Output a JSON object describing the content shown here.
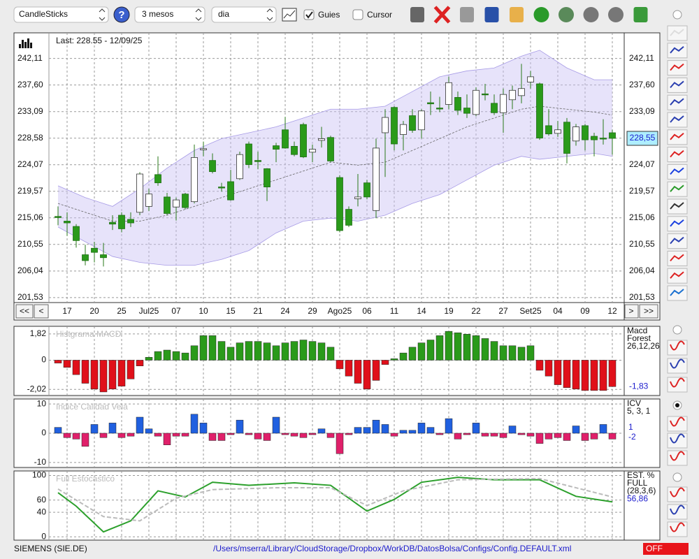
{
  "toolbar": {
    "chart_type": "CandleSticks",
    "period": "3 mesos",
    "interval": "dia",
    "guides_label": "Guies",
    "guides_checked": true,
    "cursor_label": "Cursor",
    "cursor_checked": false
  },
  "nav": {
    "first": "<<",
    "prev": "<",
    "next": ">",
    "last": ">>"
  },
  "chart_data": [
    {
      "type": "candlestick",
      "title": "Last: 228.55 - 12/09/25",
      "categories": [
        null,
        "17",
        null,
        null,
        "20",
        null,
        null,
        "25",
        null,
        null,
        "Jul25",
        null,
        null,
        "07",
        null,
        null,
        "10",
        null,
        null,
        "15",
        null,
        null,
        "21",
        null,
        null,
        "24",
        null,
        null,
        "29",
        null,
        null,
        "Ago25",
        null,
        null,
        "06",
        null,
        null,
        "11",
        null,
        null,
        "14",
        null,
        null,
        "19",
        null,
        null,
        "22",
        null,
        null,
        "27",
        null,
        null,
        "Set25",
        null,
        null,
        "04",
        null,
        null,
        "09",
        null,
        null,
        "12"
      ],
      "open": [
        215.3,
        214.5,
        213.6,
        208.8,
        209.9,
        208.8,
        214.3,
        215.5,
        214.8,
        216.0,
        217.0,
        222.4,
        218.6,
        216.9,
        219.1,
        217.8,
        226.6,
        224.8,
        220.3,
        221.2,
        221.7,
        227.6,
        224.8,
        223.4,
        227.3,
        230.0,
        227.2,
        230.9,
        226.2,
        228.2,
        228.7,
        221.9,
        216.5,
        218.3,
        221.0,
        216.3,
        229.5,
        233.8,
        229.2,
        232.4,
        230.0,
        234.6,
        233.7,
        234.3,
        235.5,
        233.7,
        232.6,
        236.1,
        234.5,
        232.9,
        235.1,
        235.8,
        238.1,
        237.8,
        230.7,
        229.4,
        231.3,
        228.1,
        230.7,
        228.9,
        228.6,
        229.5
      ],
      "high": [
        217.0,
        216.0,
        214.0,
        210.5,
        211.0,
        210.8,
        215.5,
        216.0,
        216.0,
        222.8,
        220.0,
        225.5,
        219.3,
        218.5,
        219.3,
        227.5,
        228.0,
        226.0,
        221.0,
        223.2,
        226.3,
        228.0,
        226.3,
        223.5,
        227.8,
        232.2,
        228.0,
        231.2,
        227.5,
        230.5,
        229.0,
        222.3,
        217.0,
        222.5,
        221.5,
        228.5,
        233.5,
        234.0,
        231.5,
        233.5,
        233.5,
        236.5,
        235.6,
        239.0,
        236.5,
        236.0,
        237.2,
        237.8,
        236.0,
        237.0,
        237.5,
        241.2,
        240.0,
        238.0,
        233.5,
        231.5,
        232.0,
        231.0,
        231.0,
        229.5,
        231.8,
        230.0
      ],
      "low": [
        213.8,
        212.0,
        210.0,
        207.0,
        207.5,
        206.8,
        213.0,
        212.6,
        213.5,
        215.5,
        216.2,
        220.5,
        215.5,
        214.6,
        216.5,
        217.5,
        225.5,
        222.6,
        219.5,
        218.0,
        221.5,
        223.5,
        223.3,
        217.9,
        224.5,
        226.8,
        225.5,
        225.2,
        224.5,
        227.0,
        224.5,
        212.6,
        213.5,
        217.0,
        218.2,
        215.0,
        222.0,
        226.5,
        226.5,
        229.5,
        228.5,
        232.5,
        233.0,
        233.5,
        232.5,
        232.0,
        232.3,
        235.0,
        232.5,
        229.5,
        233.5,
        234.5,
        237.0,
        228.3,
        229.0,
        228.8,
        224.3,
        227.3,
        226.5,
        225.5,
        227.5,
        225.8
      ],
      "close": [
        215.1,
        214.2,
        211.2,
        207.8,
        209.2,
        208.3,
        214.0,
        213.2,
        214.2,
        222.5,
        219.1,
        221.0,
        215.8,
        218.1,
        216.8,
        225.3,
        226.8,
        222.9,
        220.2,
        218.1,
        225.8,
        224.1,
        224.6,
        220.3,
        226.7,
        226.9,
        225.8,
        225.4,
        226.7,
        228.5,
        224.7,
        212.9,
        213.8,
        218.6,
        218.6,
        226.9,
        232.1,
        227.6,
        230.9,
        229.9,
        233.2,
        234.4,
        233.6,
        238.0,
        233.3,
        232.8,
        236.7,
        236.0,
        232.9,
        236.0,
        236.7,
        237.0,
        239.0,
        228.6,
        229.3,
        230.0,
        226.0,
        230.5,
        228.3,
        228.3,
        228.5,
        228.55
      ],
      "last_label": "228,55",
      "up_color": "#ffffff",
      "down_color": "#2a9a1a",
      "bands": {
        "index": [
          0,
          3,
          6,
          9,
          12,
          15,
          18,
          21,
          24,
          27,
          30,
          33,
          36,
          39,
          42,
          45,
          48,
          51,
          53,
          56,
          59,
          61
        ],
        "upper": [
          220.5,
          218.5,
          217.0,
          220.0,
          223.5,
          226.5,
          228.5,
          229.5,
          230.5,
          232.0,
          233.5,
          233.5,
          234.0,
          236.5,
          239.0,
          240.0,
          240.5,
          242.5,
          243.5,
          240.5,
          238.5,
          238.5
        ],
        "mid": [
          217.5,
          216.0,
          214.5,
          214.5,
          215.5,
          217.0,
          218.5,
          220.0,
          221.5,
          223.0,
          224.5,
          224.0,
          224.5,
          226.5,
          228.5,
          230.5,
          232.0,
          233.5,
          234.0,
          233.5,
          233.0,
          232.5
        ],
        "lower": [
          213.5,
          211.0,
          208.5,
          207.5,
          207.0,
          207.0,
          208.0,
          209.5,
          212.5,
          214.5,
          215.0,
          214.5,
          215.5,
          217.5,
          219.0,
          221.5,
          224.0,
          225.5,
          225.0,
          225.5,
          226.0,
          225.5
        ],
        "color": "#c9c2f4"
      },
      "ylim": [
        200.8,
        246.1
      ],
      "yticks": [
        {
          "value": 242.11,
          "label": "242,11"
        },
        {
          "value": 237.6,
          "label": "237,60"
        },
        {
          "value": 233.09,
          "label": "233,09"
        },
        {
          "value": 228.58,
          "label": "228,58"
        },
        {
          "value": 224.07,
          "label": "224,07"
        },
        {
          "value": 219.57,
          "label": "219,57"
        },
        {
          "value": 215.06,
          "label": "215,06"
        },
        {
          "value": 210.55,
          "label": "210,55"
        },
        {
          "value": 206.04,
          "label": "206,04"
        },
        {
          "value": 201.53,
          "label": "201,53"
        }
      ],
      "grid": true
    },
    {
      "type": "bar",
      "title": "Histgrama MACD",
      "legend": [
        "Macd",
        "Forest",
        "26,12,26"
      ],
      "last_label": "-1,83",
      "values": [
        -0.2,
        -0.5,
        -1.0,
        -1.6,
        -2.0,
        -2.2,
        -2.0,
        -1.8,
        -1.3,
        -0.4,
        0.2,
        0.6,
        0.7,
        0.6,
        0.5,
        1.0,
        1.7,
        1.7,
        1.3,
        0.9,
        1.2,
        1.3,
        1.3,
        1.2,
        1.0,
        1.2,
        1.3,
        1.4,
        1.3,
        1.2,
        0.9,
        -0.6,
        -1.1,
        -1.6,
        -2.0,
        -1.4,
        -0.3,
        0.1,
        0.5,
        0.9,
        1.2,
        1.4,
        1.7,
        2.0,
        1.9,
        1.8,
        1.7,
        1.5,
        1.3,
        1.0,
        1.0,
        0.9,
        1.0,
        -0.7,
        -1.1,
        -1.7,
        -1.9,
        -2.0,
        -2.1,
        -2.1,
        -2.1,
        -1.83
      ],
      "positive_color": "#2a9a1a",
      "negative_color": "#e0101a",
      "ylim": [
        -2.3,
        2.2
      ],
      "yticks": [
        {
          "value": 1.82,
          "label": "1,82"
        },
        0,
        {
          "value": -2.02,
          "label": "-2,02"
        }
      ],
      "grid": true
    },
    {
      "type": "bar",
      "title": "Indice Calidad Vela",
      "legend": [
        "ICV",
        "5, 3, 1"
      ],
      "side_values": [
        1,
        -2
      ],
      "values": [
        2,
        -1.5,
        -2,
        -4.5,
        3,
        -1.5,
        3.5,
        -1.5,
        -1,
        5.5,
        1.5,
        -1,
        -4,
        -1,
        -1,
        6.5,
        3.5,
        -2.5,
        -2.5,
        -0.5,
        4.5,
        -0.5,
        -2,
        -2.5,
        5.5,
        -0.5,
        -1,
        -1.5,
        -0.5,
        1.5,
        -1.5,
        -7,
        -0.5,
        2,
        2,
        4.5,
        3,
        -1,
        1,
        1,
        3.5,
        2,
        -0.5,
        5,
        -2,
        -0.5,
        3.5,
        -1,
        -1,
        -1.5,
        2.5,
        -0.5,
        -1,
        -3.5,
        -2,
        -1.5,
        -2.5,
        2.5,
        -2.5,
        -2,
        3,
        -2
      ],
      "positive_color": "#2060e0",
      "negative_color": "#e0206a",
      "ylim": [
        -11,
        11
      ],
      "yticks": [
        10,
        0,
        -10
      ],
      "grid": true
    },
    {
      "type": "line",
      "title": "Full Estocastico",
      "legend": [
        "EST. %",
        "FULL",
        "(28,3,6)"
      ],
      "last_label": "56,86",
      "lines": [
        {
          "color": "#2ca02c",
          "index": [
            0,
            2,
            5,
            8,
            11,
            14,
            17,
            21,
            26,
            30,
            32,
            34,
            37,
            40,
            44,
            48,
            53,
            57,
            61
          ],
          "values": [
            72,
            50,
            8,
            26,
            75,
            65,
            89,
            84,
            88,
            84,
            63,
            42,
            61,
            89,
            97,
            93,
            93,
            66,
            57
          ]
        },
        {
          "color": "#bbbbbb",
          "dashed": true,
          "index": [
            0,
            5,
            9,
            13,
            17,
            24,
            30,
            34,
            38,
            44,
            53,
            61
          ],
          "values": [
            78,
            33,
            26,
            63,
            77,
            80,
            80,
            51,
            75,
            93,
            95,
            65
          ]
        }
      ],
      "ylim": [
        -2,
        104
      ],
      "yticks": [
        100,
        60,
        40,
        0
      ],
      "grid": true
    }
  ],
  "footer": {
    "ticker": "SIEMENS (SIE.DE)",
    "path": "/Users/mserra/Library/CloudStorage/Dropbox/WorkDB/DatosBolsa/Configs/Config.DEFAULT.xml",
    "status": "OFF"
  }
}
